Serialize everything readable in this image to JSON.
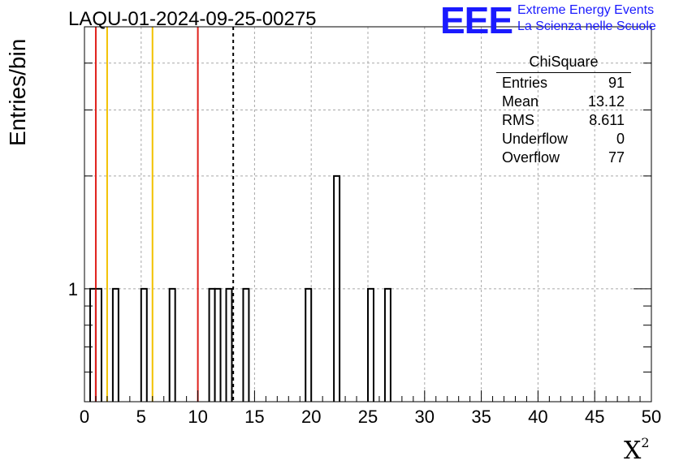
{
  "header": {
    "title": "LAQU-01-2024-09-25-00275"
  },
  "logo": {
    "mark": "EEE",
    "line1": "Extreme Energy Events",
    "line2": "La Scienza nelle Scuole",
    "color": "#1a1aff"
  },
  "stats": {
    "title": "ChiSquare",
    "rows": [
      {
        "label": "Entries",
        "value": "91"
      },
      {
        "label": "Mean",
        "value": "13.12"
      },
      {
        "label": "RMS",
        "value": "8.611"
      },
      {
        "label": "Underflow",
        "value": "0"
      },
      {
        "label": "Overflow",
        "value": "77"
      }
    ]
  },
  "chart_data": {
    "type": "bar",
    "title": "LAQU-01-2024-09-25-00275",
    "xlabel": "X",
    "xlabel_sup": "2",
    "ylabel": "Entries/bin",
    "xlim": [
      0,
      50
    ],
    "ylog": true,
    "ylim": [
      0.5,
      5
    ],
    "grid": true,
    "bin_width": 0.5,
    "xticks": [
      0,
      5,
      10,
      15,
      20,
      25,
      30,
      35,
      40,
      45,
      50
    ],
    "yticks": [
      1
    ],
    "bins": [
      {
        "x": 0.5,
        "value": 1
      },
      {
        "x": 1.0,
        "value": 1
      },
      {
        "x": 2.5,
        "value": 1
      },
      {
        "x": 5.0,
        "value": 1
      },
      {
        "x": 7.5,
        "value": 1
      },
      {
        "x": 11.0,
        "value": 1
      },
      {
        "x": 11.5,
        "value": 1
      },
      {
        "x": 12.5,
        "value": 1
      },
      {
        "x": 14.0,
        "value": 1
      },
      {
        "x": 19.5,
        "value": 1
      },
      {
        "x": 22.0,
        "value": 2
      },
      {
        "x": 25.0,
        "value": 1
      },
      {
        "x": 26.5,
        "value": 1
      }
    ],
    "vlines": [
      {
        "x": 1.0,
        "color": "#e0201b",
        "style": "solid"
      },
      {
        "x": 2.0,
        "color": "#f2c200",
        "style": "solid"
      },
      {
        "x": 6.0,
        "color": "#f2c200",
        "style": "solid"
      },
      {
        "x": 10.0,
        "color": "#e0201b",
        "style": "solid"
      },
      {
        "x": 13.12,
        "color": "#000000",
        "style": "dashed"
      }
    ]
  }
}
